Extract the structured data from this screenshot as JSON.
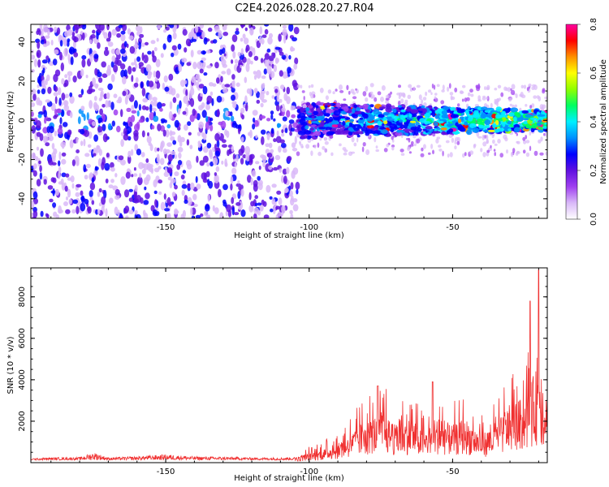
{
  "title": "C2E4.2026.028.20.27.R04",
  "chart_data": [
    {
      "type": "heatmap",
      "xlabel": "Height of straight line (km)",
      "ylabel": "Frequency (Hz)",
      "xlim": [
        -197,
        -17
      ],
      "ylim": [
        -50,
        49
      ],
      "xticks": [
        -150,
        -100,
        -50
      ],
      "yticks": [
        -40,
        -20,
        0,
        20,
        40
      ],
      "colorbar": {
        "label": "Normalized spectral amplitude",
        "range": [
          0,
          0.8
        ],
        "ticks": [
          "0.0",
          "0.2",
          "0.4",
          "0.6",
          "0.8"
        ],
        "colors": [
          "#ffffff",
          "#d9b8f8",
          "#a040f0",
          "#6010e0",
          "#0000ff",
          "#0090ff",
          "#00f0ff",
          "#00ff60",
          "#90ff00",
          "#ffff00",
          "#ff9000",
          "#ff0000",
          "#ff00a0"
        ]
      },
      "regions": [
        {
          "x_range": [
            -197,
            -105
          ],
          "description_band_center_hz": 0,
          "band_halfwidth_hz": 49,
          "mean_amplitude": 0.08
        },
        {
          "x_range": [
            -105,
            -17
          ],
          "description_band_center_hz": 0,
          "band_halfwidth_hz": 8,
          "mean_amplitude": 0.3
        }
      ]
    },
    {
      "type": "line",
      "xlabel": "Height of straight line (km)",
      "ylabel": "SNR (10 * v/v)",
      "xlim": [
        -197,
        -17
      ],
      "ylim": [
        0,
        9400
      ],
      "xticks": [
        -150,
        -100,
        -50
      ],
      "yticks": [
        2000,
        4000,
        6000,
        8000
      ],
      "color": "#f03030",
      "series": [
        {
          "name": "SNR",
          "x": [
            -197,
            -190,
            -180,
            -175,
            -170,
            -160,
            -150,
            -140,
            -130,
            -120,
            -110,
            -105,
            -100,
            -95,
            -90,
            -85,
            -80,
            -75,
            -70,
            -65,
            -60,
            -55,
            -50,
            -45,
            -40,
            -35,
            -30,
            -25,
            -20,
            -17
          ],
          "values": [
            200,
            250,
            260,
            500,
            250,
            300,
            400,
            300,
            280,
            250,
            240,
            260,
            600,
            800,
            1100,
            1800,
            2400,
            3000,
            2200,
            2600,
            1800,
            2600,
            2200,
            2500,
            1700,
            2200,
            3400,
            3800,
            5800,
            4200
          ],
          "peaks": [
            {
              "x": -20,
              "y": 9300
            },
            {
              "x": -23,
              "y": 7800
            },
            {
              "x": -76,
              "y": 3700
            },
            {
              "x": -57,
              "y": 3900
            }
          ]
        }
      ]
    }
  ]
}
